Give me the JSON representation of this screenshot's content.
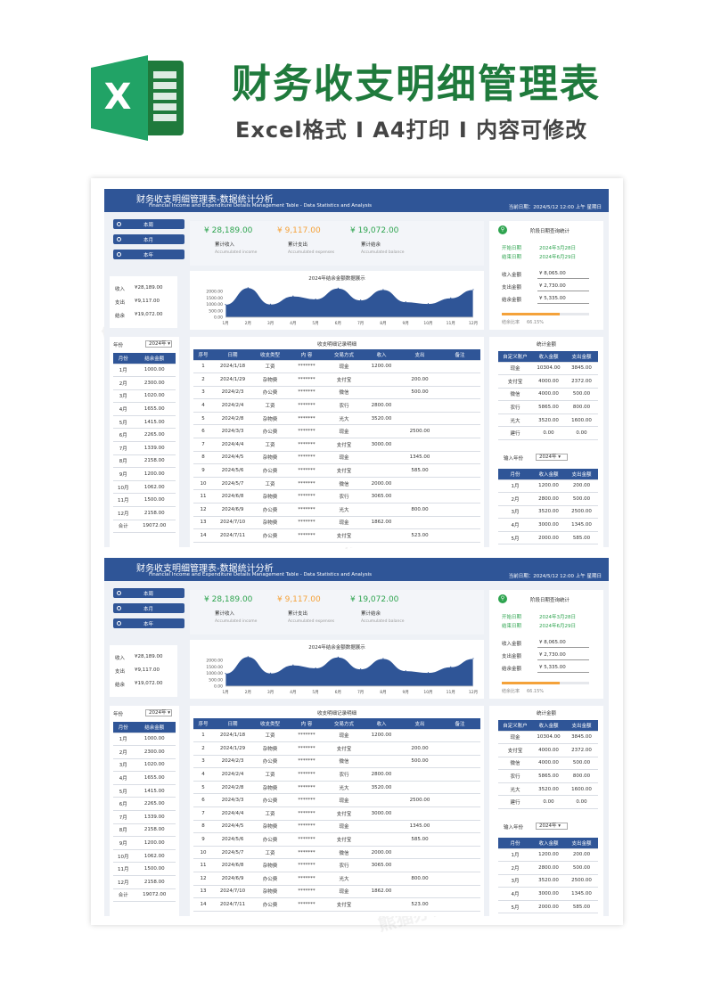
{
  "hero": {
    "title": "财务收支明细管理表",
    "subtitle": "Excel格式 I A4打印 I 内容可修改",
    "logo_letter": "X"
  },
  "sheet": {
    "title": "财务收支明细管理表-数据统计分析",
    "subtitle": "Financial Income and Expenditure Details Management Table - Data Statistics and Analysis",
    "date": "当前日期：2024/5/12 12:00 上午 星期日",
    "period_buttons": [
      "本周",
      "本月",
      "本年"
    ],
    "summary": [
      {
        "label": "收入",
        "value": "¥28,189.00"
      },
      {
        "label": "支出",
        "value": "¥9,117.00"
      },
      {
        "label": "结余",
        "value": "¥19,072.00"
      }
    ],
    "kpis": [
      {
        "value": "¥ 28,189.00",
        "label": "累计收入",
        "en": "Accumulated income",
        "color": "#2ea44f"
      },
      {
        "value": "¥ 9,117.00",
        "label": "累计支出",
        "en": "Accumulated expenses",
        "color": "#f4a23a"
      },
      {
        "value": "¥ 19,072.00",
        "label": "累计结余",
        "en": "Accumulated balance",
        "color": "#2ea44f"
      }
    ],
    "query": {
      "label": "阶段日期查询统计",
      "start_label": "开始日期",
      "start_value": "2024年3月28日",
      "end_label": "结束日期",
      "end_value": "2024年6月29日",
      "metrics": [
        {
          "label": "收入金额",
          "value": "¥ 8,065.00"
        },
        {
          "label": "支出金额",
          "value": "¥ 2,730.00"
        },
        {
          "label": "结余金额",
          "value": "¥ 5,335.00"
        }
      ],
      "ratio_label": "结余比率",
      "ratio_text": "66.15%",
      "ratio_value": 0.6615
    },
    "year_label": "年份",
    "year_value": "2024年",
    "month_table": {
      "headers": [
        "月份",
        "结余金额"
      ],
      "rows": [
        [
          "1月",
          "1000.00"
        ],
        [
          "2月",
          "2300.00"
        ],
        [
          "3月",
          "1020.00"
        ],
        [
          "4月",
          "1655.00"
        ],
        [
          "5月",
          "1415.00"
        ],
        [
          "6月",
          "2265.00"
        ],
        [
          "7月",
          "1339.00"
        ],
        [
          "8月",
          "2158.00"
        ],
        [
          "9月",
          "1200.00"
        ],
        [
          "10月",
          "1062.00"
        ],
        [
          "11月",
          "1500.00"
        ],
        [
          "12月",
          "2158.00"
        ],
        [
          "合计",
          "19072.00"
        ]
      ]
    },
    "detail_title": "收支明细记录明细",
    "detail_table": {
      "headers": [
        "序号",
        "日期",
        "收支类型",
        "内 容",
        "交易方式",
        "收入",
        "支出",
        "备注"
      ],
      "rows": [
        [
          "1",
          "2024/1/18",
          "工资",
          "*******",
          "现金",
          "1200.00",
          "",
          ""
        ],
        [
          "2",
          "2024/1/29",
          "杂物费",
          "*******",
          "支付宝",
          "",
          "200.00",
          ""
        ],
        [
          "3",
          "2024/2/3",
          "办公费",
          "*******",
          "微信",
          "",
          "500.00",
          ""
        ],
        [
          "4",
          "2024/2/4",
          "工资",
          "*******",
          "农行",
          "2800.00",
          "",
          ""
        ],
        [
          "5",
          "2024/2/8",
          "杂物费",
          "*******",
          "光大",
          "3520.00",
          "",
          ""
        ],
        [
          "6",
          "2024/3/3",
          "办公费",
          "*******",
          "现金",
          "",
          "2500.00",
          ""
        ],
        [
          "7",
          "2024/4/4",
          "工资",
          "*******",
          "支付宝",
          "3000.00",
          "",
          ""
        ],
        [
          "8",
          "2024/4/5",
          "杂物费",
          "*******",
          "现金",
          "",
          "1345.00",
          ""
        ],
        [
          "9",
          "2024/5/6",
          "办公费",
          "*******",
          "支付宝",
          "",
          "585.00",
          ""
        ],
        [
          "10",
          "2024/5/7",
          "工资",
          "*******",
          "微信",
          "2000.00",
          "",
          ""
        ],
        [
          "11",
          "2024/6/8",
          "杂物费",
          "*******",
          "农行",
          "3065.00",
          "",
          ""
        ],
        [
          "12",
          "2024/6/9",
          "办公费",
          "*******",
          "光大",
          "",
          "800.00",
          ""
        ],
        [
          "13",
          "2024/7/10",
          "杂物费",
          "*******",
          "现金",
          "1862.00",
          "",
          ""
        ],
        [
          "14",
          "2024/7/11",
          "办公费",
          "*******",
          "支付宝",
          "",
          "523.00",
          ""
        ]
      ]
    },
    "account_title": "统计金额",
    "account_table": {
      "headers": [
        "自定义账户",
        "收入金额",
        "支出金额"
      ],
      "rows": [
        [
          "现金",
          "10304.00",
          "3845.00"
        ],
        [
          "支付宝",
          "4000.00",
          "2372.00"
        ],
        [
          "微信",
          "4000.00",
          "500.00"
        ],
        [
          "农行",
          "5865.00",
          "800.00"
        ],
        [
          "光大",
          "3520.00",
          "1600.00"
        ],
        [
          "建行",
          "0.00",
          "0.00"
        ]
      ]
    },
    "input_year_label": "输入年份",
    "input_year_value": "2024年",
    "monthly_table": {
      "headers": [
        "月份",
        "收入金额",
        "支出金额"
      ],
      "rows": [
        [
          "1月",
          "1200.00",
          "200.00"
        ],
        [
          "2月",
          "2800.00",
          "500.00"
        ],
        [
          "3月",
          "3520.00",
          "2500.00"
        ],
        [
          "4月",
          "3000.00",
          "1345.00"
        ],
        [
          "5月",
          "2000.00",
          "585.00"
        ]
      ]
    }
  },
  "chart_data": {
    "type": "area",
    "title": "2024年结余金额数据展示",
    "categories": [
      "1月",
      "2月",
      "3月",
      "4月",
      "5月",
      "6月",
      "7月",
      "8月",
      "9月",
      "10月",
      "11月",
      "12月"
    ],
    "values": [
      1000,
      2300,
      1020,
      1655,
      1415,
      2265,
      1339,
      2158,
      1200,
      1062,
      1500,
      2158
    ],
    "yticks": [
      "2000.00",
      "1500.00",
      "1000.00",
      "500.00",
      "0.00"
    ],
    "ylim": [
      0,
      2500
    ],
    "color": "#2f5597"
  },
  "watermark": "熊猫办公 TUKUPPT.COM"
}
